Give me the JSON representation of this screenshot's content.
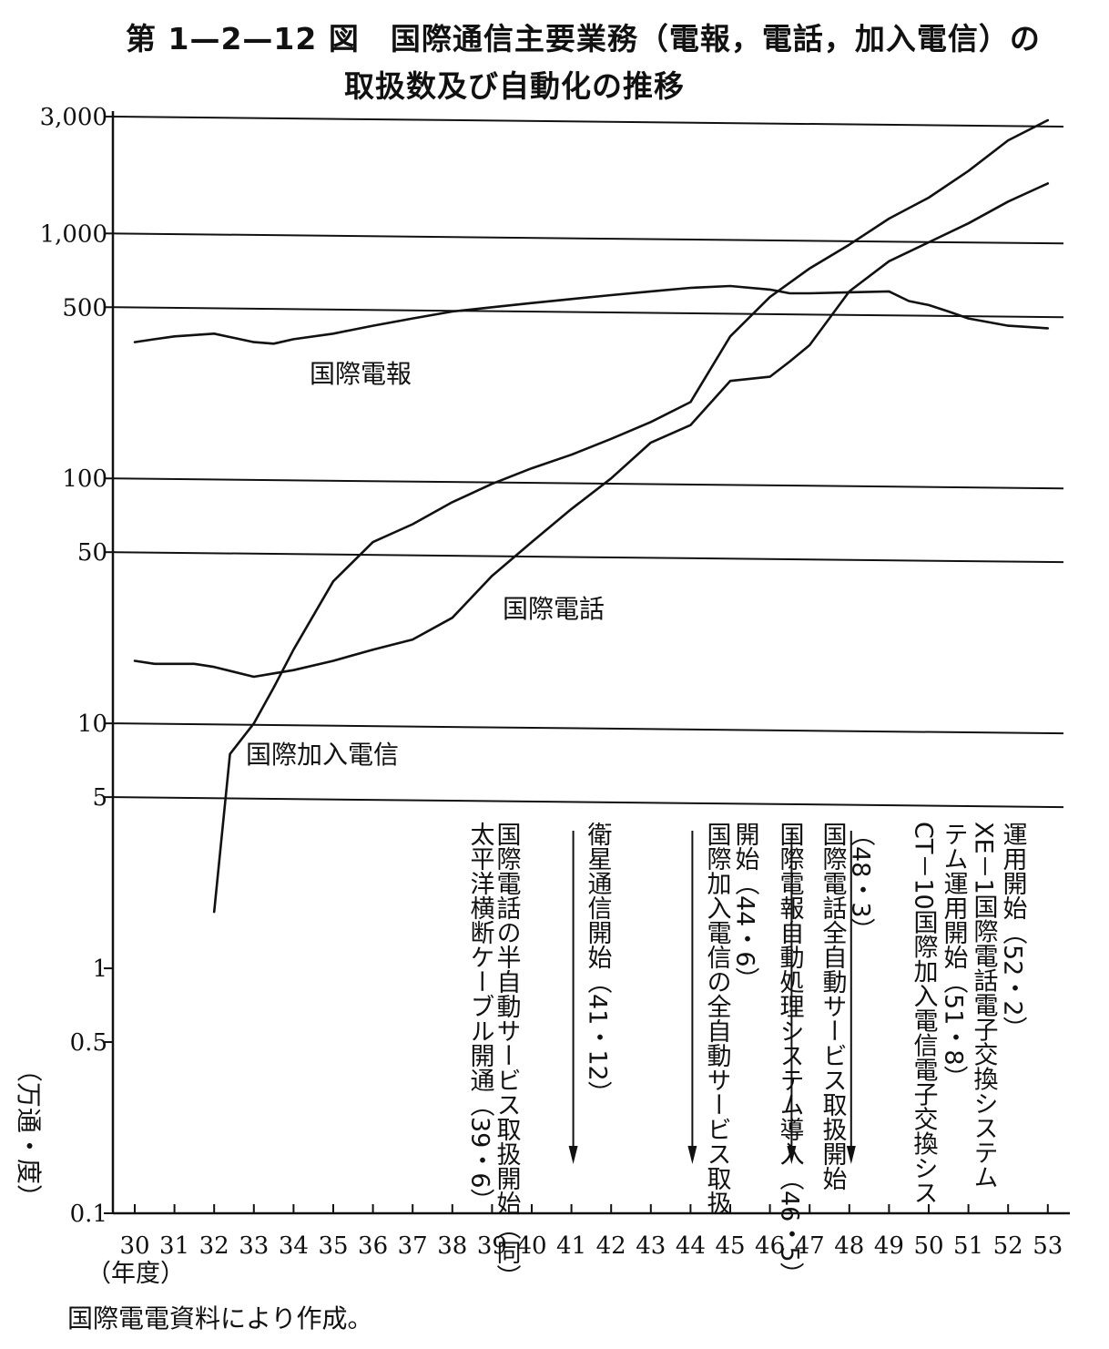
{
  "title": {
    "line1": "第 1—2—12 図　国際通信主要業務（電報，電話，加入電信）の",
    "line2": "取扱数及び自動化の推移"
  },
  "source": "国際電電資料により作成。",
  "colors": {
    "ink": "#111111",
    "background": "#ffffff"
  },
  "chart_data": {
    "type": "line",
    "scale": "log",
    "grid": "horizontal lines at 3,000 / 1,000 / 500 / 100 / 50 / 10 / 5",
    "ylabel": "（万通・度）",
    "xlabel": "（年度）",
    "ylim": [
      0.1,
      3000
    ],
    "y_ticks": [
      {
        "value": 3000,
        "label": "3,000"
      },
      {
        "value": 1000,
        "label": "1,000"
      },
      {
        "value": 500,
        "label": "500"
      },
      {
        "value": 100,
        "label": "100"
      },
      {
        "value": 50,
        "label": "50"
      },
      {
        "value": 10,
        "label": "10"
      },
      {
        "value": 5,
        "label": "5"
      },
      {
        "value": 1,
        "label": "1"
      },
      {
        "value": 0.5,
        "label": "0.5"
      },
      {
        "value": 0.1,
        "label": "0.1"
      }
    ],
    "categories": [
      "30",
      "31",
      "32",
      "33",
      "34",
      "35",
      "36",
      "37",
      "38",
      "39",
      "40",
      "41",
      "42",
      "43",
      "44",
      "45",
      "46",
      "47",
      "48",
      "49",
      "50",
      "51",
      "52",
      "53"
    ],
    "series": [
      {
        "name": "国際電報",
        "x": [
          30,
          30.5,
          31,
          32,
          33,
          33.5,
          34,
          35,
          36,
          37,
          38,
          39,
          40,
          41,
          42,
          43,
          44,
          45,
          46,
          46.5,
          47,
          48,
          49,
          49.5,
          50,
          50.5,
          51,
          52,
          53
        ],
        "values": [
          360,
          370,
          380,
          390,
          360,
          355,
          370,
          390,
          420,
          450,
          480,
          500,
          520,
          540,
          560,
          580,
          600,
          610,
          590,
          570,
          570,
          575,
          580,
          530,
          510,
          480,
          450,
          420,
          410
        ]
      },
      {
        "name": "国際電話",
        "x": [
          30,
          30.5,
          31,
          31.5,
          32,
          33,
          33.5,
          34,
          35,
          36,
          37,
          38,
          39,
          40,
          41,
          42,
          43,
          44,
          45,
          46,
          46.5,
          47,
          48,
          49,
          50,
          51,
          52,
          53
        ],
        "values": [
          18,
          17.5,
          17.5,
          17.5,
          17,
          15.5,
          16,
          16.5,
          18,
          20,
          22,
          27,
          40,
          55,
          75,
          100,
          140,
          165,
          250,
          260,
          300,
          350,
          580,
          770,
          920,
          1100,
          1350,
          1600
        ]
      },
      {
        "name": "国際加入電信",
        "x": [
          32,
          32.4,
          33,
          33.5,
          34,
          35,
          36,
          37,
          38,
          39,
          40,
          41,
          42,
          43,
          44,
          45,
          46,
          47,
          48,
          49,
          50,
          51,
          52,
          53
        ],
        "values": [
          1.7,
          7.5,
          10,
          14,
          20,
          38,
          55,
          65,
          80,
          95,
          110,
          125,
          145,
          170,
          205,
          380,
          550,
          720,
          900,
          1150,
          1400,
          1800,
          2400,
          2900
        ]
      }
    ],
    "series_label_positions_note": "labels placed beside each curve",
    "events": [
      {
        "year": 39.5,
        "text": "太平洋横断ケーブル開通（39・6）",
        "arrow": false
      },
      {
        "year": 39.5,
        "text": "国際電話の半自動サービス取扱開始（同）",
        "arrow": false
      },
      {
        "year": 41,
        "text": "衛星通信開始（41・12）",
        "arrow": true
      },
      {
        "year": 44,
        "text": "国際加入電信の全自動サービス取扱",
        "arrow": true
      },
      {
        "year": 44,
        "text": "開始（44・6）",
        "arrow": false
      },
      {
        "year": 46.5,
        "text": "国際電報自動処理システム導入（46・5）",
        "arrow": true
      },
      {
        "year": 48,
        "text": "国際電話全自動サービス取扱開始",
        "arrow": true
      },
      {
        "year": 48,
        "text": "（48・3）",
        "arrow": false
      },
      {
        "year": 51.6,
        "text": "CT－10国際加入電信電子交換シス",
        "arrow": false
      },
      {
        "year": 51.6,
        "text": "テム運用開始（51・8）",
        "arrow": false
      },
      {
        "year": 52.2,
        "text": "XE－1国際電話電子交換システム",
        "arrow": false
      },
      {
        "year": 52.2,
        "text": "運用開始（52・2）",
        "arrow": false
      }
    ]
  }
}
